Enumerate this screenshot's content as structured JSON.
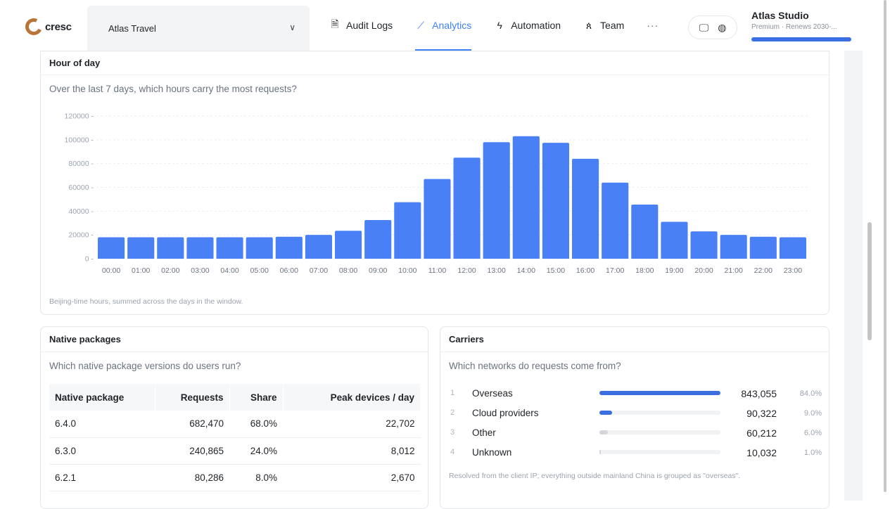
{
  "header": {
    "logo_text": "cresc",
    "project": "Atlas Travel",
    "nav": [
      {
        "label": "Audit Logs",
        "icon": "document-icon"
      },
      {
        "label": "Analytics",
        "icon": "line-chart-icon",
        "active": true
      },
      {
        "label": "Automation",
        "icon": "lightning-icon"
      },
      {
        "label": "Team",
        "icon": "users-icon"
      }
    ],
    "more": "···",
    "studio_name": "Atlas Studio",
    "studio_plan": "Premium · Renews 2030-..."
  },
  "hour_card": {
    "title": "Hour of day",
    "question": "Over the last 7 days, which hours carry the most requests?",
    "footnote": "Beijing-time hours, summed across the days in the window."
  },
  "chart_data": {
    "type": "bar",
    "categories": [
      "00:00",
      "01:00",
      "02:00",
      "03:00",
      "04:00",
      "05:00",
      "06:00",
      "07:00",
      "08:00",
      "09:00",
      "10:00",
      "11:00",
      "12:00",
      "13:00",
      "14:00",
      "15:00",
      "16:00",
      "17:00",
      "18:00",
      "19:00",
      "20:00",
      "21:00",
      "22:00",
      "23:00"
    ],
    "values": [
      18000,
      18000,
      18000,
      18000,
      18000,
      18000,
      18500,
      20000,
      23500,
      32500,
      47500,
      67000,
      85000,
      98000,
      103000,
      97500,
      84000,
      64000,
      45500,
      31000,
      23000,
      20000,
      18500,
      18000
    ],
    "yticks": [
      "0",
      "20000",
      "40000",
      "60000",
      "80000",
      "100000",
      "120000"
    ],
    "ylim": [
      0,
      120000
    ],
    "color": "#4a80f5",
    "grid": true
  },
  "packages_card": {
    "title": "Native packages",
    "question": "Which native package versions do users run?",
    "columns": [
      "Native package",
      "Requests",
      "Share",
      "Peak devices / day"
    ],
    "rows": [
      [
        "6.4.0",
        "682,470",
        "68.0%",
        "22,702"
      ],
      [
        "6.3.0",
        "240,865",
        "24.0%",
        "8,012"
      ],
      [
        "6.2.1",
        "80,286",
        "8.0%",
        "2,670"
      ]
    ]
  },
  "carriers_card": {
    "title": "Carriers",
    "question": "Which networks do requests come from?",
    "items": [
      {
        "idx": "1",
        "name": "Overseas",
        "value": "843,055",
        "pct": "84.0%",
        "share": 1.0,
        "color": "#3b6fe0"
      },
      {
        "idx": "2",
        "name": "Cloud providers",
        "value": "90,322",
        "pct": "9.0%",
        "share": 0.107,
        "color": "#3b6fe0"
      },
      {
        "idx": "3",
        "name": "Other",
        "value": "60,212",
        "pct": "6.0%",
        "share": 0.071,
        "color": "#d4d6da"
      },
      {
        "idx": "4",
        "name": "Unknown",
        "value": "10,032",
        "pct": "1.0%",
        "share": 0.012,
        "color": "#d4d6da"
      }
    ],
    "footnote": "Resolved from the client IP; everything outside mainland China is grouped as \"overseas\"."
  }
}
